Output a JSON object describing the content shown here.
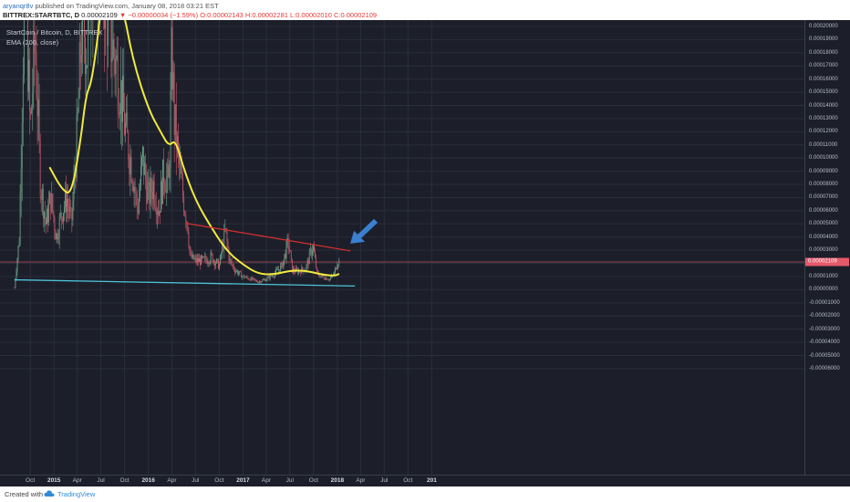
{
  "header": {
    "user": "aryanqr8v",
    "published_text": "published on TradingView.com, January 08, 2018 03:21 EST",
    "symbol": "BITTREX:STARTBTC, D",
    "price": "0.00002109",
    "change": "▼ −0.00000034 (−1.59%)",
    "ohlc": "O:0.00002143 H:0.00002281 L:0.00002010 C:0.00002109"
  },
  "legend": {
    "title": "StartCoin / Bitcoin, D, BITTREX",
    "indicator": "EMA (200, close)"
  },
  "price_scale": {
    "ticks": [
      "0.00020000",
      "0.00019000",
      "0.00018000",
      "0.00017000",
      "0.00016000",
      "0.00015000",
      "0.00014000",
      "0.00013000",
      "0.00012000",
      "0.00011000",
      "0.00010000",
      "0.00009000",
      "0.00008000",
      "0.00007000",
      "0.00006000",
      "0.00005000",
      "0.00004000",
      "0.00003000",
      "0.00002000",
      "0.00001000",
      "0.00000000",
      "-0.00001000",
      "-0.00002000",
      "-0.00003000",
      "-0.00004000",
      "-0.00005000",
      "-0.00006000"
    ],
    "current_price_label": "0.00002109"
  },
  "time_scale": {
    "ticks": [
      {
        "label": "Oct",
        "year": false
      },
      {
        "label": "2015",
        "year": true
      },
      {
        "label": "Apr",
        "year": false
      },
      {
        "label": "Jul",
        "year": false
      },
      {
        "label": "Oct",
        "year": false
      },
      {
        "label": "2016",
        "year": true
      },
      {
        "label": "Apr",
        "year": false
      },
      {
        "label": "Jul",
        "year": false
      },
      {
        "label": "Oct",
        "year": false
      },
      {
        "label": "2017",
        "year": true
      },
      {
        "label": "Apr",
        "year": false
      },
      {
        "label": "Jul",
        "year": false
      },
      {
        "label": "Oct",
        "year": false
      },
      {
        "label": "2018",
        "year": true
      },
      {
        "label": "Apr",
        "year": false
      },
      {
        "label": "Jul",
        "year": false
      },
      {
        "label": "Oct",
        "year": false
      },
      {
        "label": "201",
        "year": true
      }
    ]
  },
  "footer": {
    "created_with": "Created with",
    "brand": "TradingView"
  },
  "colors": {
    "background": "#1c1f2a",
    "ema": "#f2ea3c",
    "resistance_line": "#d32f2f",
    "support_line": "#4fc3d7",
    "arrow": "#3a7fd0",
    "current_price_line": "#e55a6a",
    "candle_up": "#6fa58a",
    "candle_down": "#c85a6a"
  },
  "chart_data": {
    "type": "candlestick",
    "symbol": "StartCoin / Bitcoin",
    "interval": "D",
    "exchange": "BITTREX",
    "ylim": [
      -6e-05,
      0.0002
    ],
    "x_range": [
      "2014-08",
      "2019-01"
    ],
    "current_price": 2.109e-05,
    "price_path": [
      {
        "date": "2014-08-01",
        "value": 1.5e-06
      },
      {
        "date": "2014-08-20",
        "value": 4e-05
      },
      {
        "date": "2014-09-10",
        "value": 0.00025
      },
      {
        "date": "2014-10-01",
        "value": 0.00012
      },
      {
        "date": "2014-10-20",
        "value": 0.00019
      },
      {
        "date": "2014-11-10",
        "value": 8e-05
      },
      {
        "date": "2014-12-01",
        "value": 5e-05
      },
      {
        "date": "2014-12-20",
        "value": 7e-05
      },
      {
        "date": "2015-01-10",
        "value": 4e-05
      },
      {
        "date": "2015-02-01",
        "value": 6e-05
      },
      {
        "date": "2015-02-20",
        "value": 7e-05
      },
      {
        "date": "2015-03-10",
        "value": 5e-05
      },
      {
        "date": "2015-04-01",
        "value": 0.00012
      },
      {
        "date": "2015-04-20",
        "value": 0.00021
      },
      {
        "date": "2015-05-10",
        "value": 0.00018
      },
      {
        "date": "2015-05-25",
        "value": 0.00025
      },
      {
        "date": "2015-07-01",
        "value": 0.00025
      },
      {
        "date": "2015-08-10",
        "value": 0.00019
      },
      {
        "date": "2015-09-10",
        "value": 0.00016
      },
      {
        "date": "2015-10-05",
        "value": 0.00012
      },
      {
        "date": "2015-11-01",
        "value": 9e-05
      },
      {
        "date": "2015-11-20",
        "value": 6e-05
      },
      {
        "date": "2015-12-10",
        "value": 0.0001
      },
      {
        "date": "2016-01-01",
        "value": 7e-05
      },
      {
        "date": "2016-01-20",
        "value": 8e-05
      },
      {
        "date": "2016-02-10",
        "value": 6e-05
      },
      {
        "date": "2016-03-01",
        "value": 9e-05
      },
      {
        "date": "2016-03-20",
        "value": 8e-05
      },
      {
        "date": "2016-04-01",
        "value": 0.000185
      },
      {
        "date": "2016-04-10",
        "value": 0.00013
      },
      {
        "date": "2016-04-25",
        "value": 0.0001
      },
      {
        "date": "2016-05-15",
        "value": 7e-05
      },
      {
        "date": "2016-06-01",
        "value": 5e-05
      },
      {
        "date": "2016-06-10",
        "value": 2.5e-05
      },
      {
        "date": "2016-07-01",
        "value": 2.2e-05
      },
      {
        "date": "2016-08-01",
        "value": 2.2e-05
      },
      {
        "date": "2016-09-01",
        "value": 2.5e-05
      },
      {
        "date": "2016-10-01",
        "value": 1.8e-05
      },
      {
        "date": "2016-10-25",
        "value": 4.5e-05
      },
      {
        "date": "2016-11-10",
        "value": 2.2e-05
      },
      {
        "date": "2016-12-01",
        "value": 1.5e-05
      },
      {
        "date": "2017-01-01",
        "value": 1e-05
      },
      {
        "date": "2017-02-01",
        "value": 8e-06
      },
      {
        "date": "2017-03-01",
        "value": 6e-06
      },
      {
        "date": "2017-04-01",
        "value": 8e-06
      },
      {
        "date": "2017-05-01",
        "value": 1.2e-05
      },
      {
        "date": "2017-06-01",
        "value": 1.8e-05
      },
      {
        "date": "2017-06-25",
        "value": 3.7e-05
      },
      {
        "date": "2017-07-10",
        "value": 1.5e-05
      },
      {
        "date": "2017-08-01",
        "value": 1.4e-05
      },
      {
        "date": "2017-09-01",
        "value": 1.6e-05
      },
      {
        "date": "2017-09-28",
        "value": 3.4e-05
      },
      {
        "date": "2017-10-15",
        "value": 1.2e-05
      },
      {
        "date": "2017-11-01",
        "value": 1e-05
      },
      {
        "date": "2017-12-01",
        "value": 8e-06
      },
      {
        "date": "2017-12-20",
        "value": 1.2e-05
      },
      {
        "date": "2018-01-01",
        "value": 2.2e-05
      },
      {
        "date": "2018-01-08",
        "value": 2.109e-05
      }
    ],
    "ema_200": [
      {
        "date": "2014-12-15",
        "value": 9.3e-05
      },
      {
        "date": "2015-02-01",
        "value": 7.6e-05
      },
      {
        "date": "2015-03-10",
        "value": 7.2e-05
      },
      {
        "date": "2015-04-15",
        "value": 0.000115
      },
      {
        "date": "2015-05-05",
        "value": 0.000148
      },
      {
        "date": "2015-05-25",
        "value": 0.000157
      },
      {
        "date": "2015-06-15",
        "value": 0.000185
      },
      {
        "date": "2015-07-05",
        "value": 0.00022
      },
      {
        "date": "2015-09-20",
        "value": 0.00022
      },
      {
        "date": "2015-11-01",
        "value": 0.000175
      },
      {
        "date": "2016-01-01",
        "value": 0.000137
      },
      {
        "date": "2016-02-20",
        "value": 0.000119
      },
      {
        "date": "2016-03-20",
        "value": 0.000109
      },
      {
        "date": "2016-04-15",
        "value": 0.000114
      },
      {
        "date": "2016-05-15",
        "value": 9.3e-05
      },
      {
        "date": "2016-07-01",
        "value": 6.8e-05
      },
      {
        "date": "2016-09-01",
        "value": 4.7e-05
      },
      {
        "date": "2016-11-01",
        "value": 2.9e-05
      },
      {
        "date": "2017-01-01",
        "value": 1.9e-05
      },
      {
        "date": "2017-03-01",
        "value": 1.2e-05
      },
      {
        "date": "2017-05-01",
        "value": 1.15e-05
      },
      {
        "date": "2017-07-01",
        "value": 1.45e-05
      },
      {
        "date": "2017-09-01",
        "value": 1.45e-05
      },
      {
        "date": "2017-11-01",
        "value": 1.15e-05
      },
      {
        "date": "2017-12-20",
        "value": 1.05e-05
      },
      {
        "date": "2018-01-08",
        "value": 1.2e-05
      }
    ],
    "annotations": [
      {
        "type": "trend_line",
        "name": "resistance",
        "from": {
          "date": "2016-05-25",
          "value": 5.05e-05
        },
        "to": {
          "date": "2018-02-20",
          "value": 2.95e-05
        }
      },
      {
        "type": "trend_line",
        "name": "support",
        "from": {
          "date": "2014-08-01",
          "value": 7.5e-06
        },
        "to": {
          "date": "2018-03-10",
          "value": 2.8e-06
        }
      },
      {
        "type": "arrow",
        "name": "pointer-arrow",
        "at": {
          "date": "2018-02-20",
          "value": 3.5e-05
        }
      }
    ]
  }
}
